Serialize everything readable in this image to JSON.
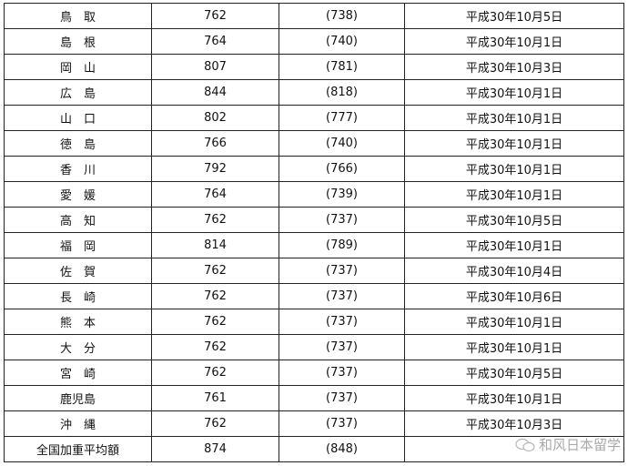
{
  "rows": [
    {
      "pref": "鳥　取",
      "wage": "762",
      "prev": "(738)",
      "date": "平成30年10月5日"
    },
    {
      "pref": "島　根",
      "wage": "764",
      "prev": "(740)",
      "date": "平成30年10月1日"
    },
    {
      "pref": "岡　山",
      "wage": "807",
      "prev": "(781)",
      "date": "平成30年10月3日"
    },
    {
      "pref": "広　島",
      "wage": "844",
      "prev": "(818)",
      "date": "平成30年10月1日"
    },
    {
      "pref": "山　口",
      "wage": "802",
      "prev": "(777)",
      "date": "平成30年10月1日"
    },
    {
      "pref": "徳　島",
      "wage": "766",
      "prev": "(740)",
      "date": "平成30年10月1日"
    },
    {
      "pref": "香　川",
      "wage": "792",
      "prev": "(766)",
      "date": "平成30年10月1日"
    },
    {
      "pref": "愛　媛",
      "wage": "764",
      "prev": "(739)",
      "date": "平成30年10月1日"
    },
    {
      "pref": "高　知",
      "wage": "762",
      "prev": "(737)",
      "date": "平成30年10月5日"
    },
    {
      "pref": "福　岡",
      "wage": "814",
      "prev": "(789)",
      "date": "平成30年10月1日"
    },
    {
      "pref": "佐　賀",
      "wage": "762",
      "prev": "(737)",
      "date": "平成30年10月4日"
    },
    {
      "pref": "長　崎",
      "wage": "762",
      "prev": "(737)",
      "date": "平成30年10月6日"
    },
    {
      "pref": "熊　本",
      "wage": "762",
      "prev": "(737)",
      "date": "平成30年10月1日"
    },
    {
      "pref": "大　分",
      "wage": "762",
      "prev": "(737)",
      "date": "平成30年10月1日"
    },
    {
      "pref": "宮　崎",
      "wage": "762",
      "prev": "(737)",
      "date": "平成30年10月5日"
    },
    {
      "pref": "鹿児島",
      "wage": "761",
      "prev": "(737)",
      "date": "平成30年10月1日"
    },
    {
      "pref": "沖　縄",
      "wage": "762",
      "prev": "(737)",
      "date": "平成30年10月3日"
    },
    {
      "pref": "全国加重平均額",
      "wage": "874",
      "prev": "(848)",
      "date": ""
    }
  ],
  "watermark": {
    "text": "和风日本留学",
    "icon": "wechat-icon"
  }
}
